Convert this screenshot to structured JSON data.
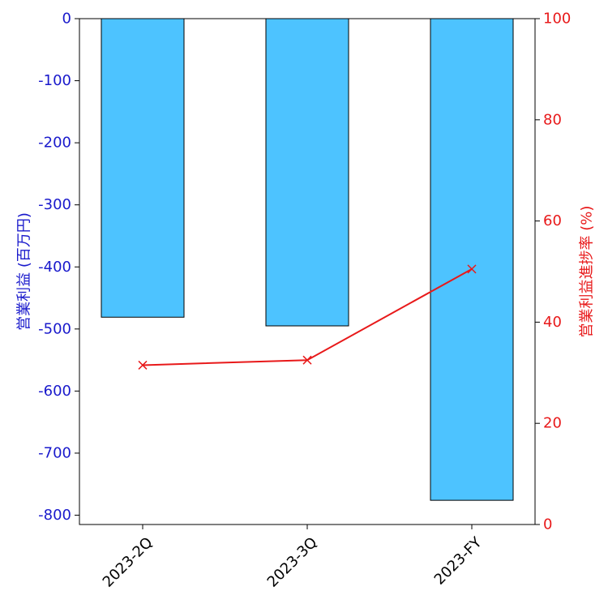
{
  "chart_data": {
    "type": "bar",
    "categories": [
      "2023-2Q",
      "2023-3Q",
      "2023-FY"
    ],
    "series": [
      {
        "name": "営業利益 (百万円)",
        "kind": "bar",
        "axis": "left",
        "values": [
          -481,
          -495,
          -776
        ],
        "color": "#4dc3ff"
      },
      {
        "name": "営業利益進捗率 (%)",
        "kind": "line",
        "axis": "right",
        "marker": "x",
        "values": [
          31.5,
          32.5,
          50.5
        ],
        "color": "#e8191a"
      }
    ],
    "ylabel": "営業利益 (百万円)",
    "ylabel_right": "営業利益進捗率 (%)",
    "ylim": [
      -815,
      0
    ],
    "ylim_right": [
      0,
      100
    ],
    "yticks": [
      0,
      -100,
      -200,
      -300,
      -400,
      -500,
      -600,
      -700,
      -800
    ],
    "yticks_right": [
      0,
      20,
      40,
      60,
      80,
      100
    ],
    "left_axis_color": "#1a1acc",
    "right_axis_color": "#e8191a",
    "grid": false,
    "legend": "none"
  }
}
